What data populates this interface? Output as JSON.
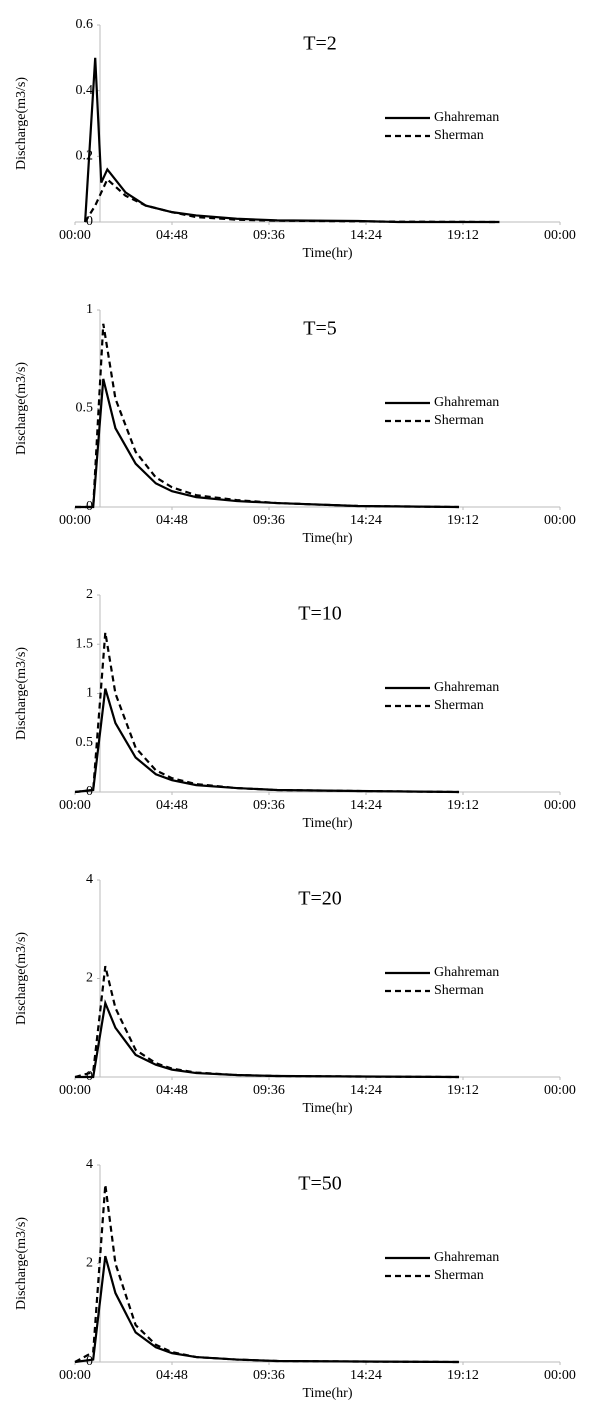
{
  "chart_data": [
    {
      "type": "line",
      "title": "T=2",
      "x_label": "Time(hr)",
      "y_label": "Discharge(m3/s)",
      "x": [
        0.5,
        1.0,
        1.3,
        1.6,
        2.5,
        3.5,
        4.8,
        6,
        8,
        10,
        14,
        16,
        21
      ],
      "series": [
        {
          "name": "Ghahreman",
          "color": "#000000",
          "line_style": "solid",
          "values": [
            0,
            0.5,
            0.12,
            0.16,
            0.09,
            0.05,
            0.03,
            0.02,
            0.01,
            0.005,
            0.003,
            0,
            0
          ]
        },
        {
          "name": "Sherman",
          "color": "#000000",
          "line_style": "dashed",
          "values": [
            0,
            0.05,
            0.09,
            0.13,
            0.08,
            0.05,
            0.03,
            0.015,
            0.007,
            0.004,
            0.002,
            0.001,
            0
          ]
        }
      ],
      "xlim": [
        0,
        24
      ],
      "xticks": [
        {
          "value": 0,
          "label": "00:00"
        },
        {
          "value": 4.8,
          "label": "04:48"
        },
        {
          "value": 9.6,
          "label": "09:36"
        },
        {
          "value": 14.4,
          "label": "14:24"
        },
        {
          "value": 19.2,
          "label": "19:12"
        },
        {
          "value": 24,
          "label": "00:00"
        }
      ],
      "ylim": [
        0,
        0.6
      ],
      "yticks": [
        0,
        0.2,
        0.4,
        0.6
      ],
      "grid": false,
      "legend": "right"
    },
    {
      "type": "line",
      "title": "T=5",
      "x_label": "Time(hr)",
      "y_label": "Discharge(m3/s)",
      "x": [
        0,
        0.9,
        1.4,
        2,
        3,
        4,
        4.8,
        6,
        8,
        10,
        14,
        19
      ],
      "series": [
        {
          "name": "Ghahreman",
          "color": "#000000",
          "line_style": "solid",
          "values": [
            0,
            0,
            0.65,
            0.4,
            0.22,
            0.12,
            0.08,
            0.05,
            0.03,
            0.02,
            0.005,
            0
          ]
        },
        {
          "name": "Sherman",
          "color": "#000000",
          "line_style": "dashed",
          "values": [
            0,
            0,
            0.93,
            0.55,
            0.28,
            0.15,
            0.1,
            0.06,
            0.035,
            0.02,
            0.005,
            0
          ]
        }
      ],
      "xlim": [
        0,
        24
      ],
      "xticks": [
        {
          "value": 0,
          "label": "00:00"
        },
        {
          "value": 4.8,
          "label": "04:48"
        },
        {
          "value": 9.6,
          "label": "09:36"
        },
        {
          "value": 14.4,
          "label": "14:24"
        },
        {
          "value": 19.2,
          "label": "19:12"
        },
        {
          "value": 24,
          "label": "00:00"
        }
      ],
      "ylim": [
        0,
        1
      ],
      "yticks": [
        0,
        0.5,
        1
      ],
      "grid": false,
      "legend": "right"
    },
    {
      "type": "line",
      "title": "T=10",
      "x_label": "Time(hr)",
      "y_label": "Discharge(m3/s)",
      "x": [
        0,
        0.9,
        1.5,
        2,
        3,
        4,
        4.8,
        6,
        8,
        10,
        14,
        19
      ],
      "series": [
        {
          "name": "Ghahreman",
          "color": "#000000",
          "line_style": "solid",
          "values": [
            0,
            0.02,
            1.05,
            0.7,
            0.35,
            0.18,
            0.12,
            0.07,
            0.04,
            0.02,
            0.01,
            0
          ]
        },
        {
          "name": "Sherman",
          "color": "#000000",
          "line_style": "dashed",
          "values": [
            0,
            0.02,
            1.62,
            1.0,
            0.45,
            0.22,
            0.14,
            0.08,
            0.04,
            0.02,
            0.01,
            0
          ]
        }
      ],
      "xlim": [
        0,
        24
      ],
      "xticks": [
        {
          "value": 0,
          "label": "00:00"
        },
        {
          "value": 4.8,
          "label": "04:48"
        },
        {
          "value": 9.6,
          "label": "09:36"
        },
        {
          "value": 14.4,
          "label": "14:24"
        },
        {
          "value": 19.2,
          "label": "19:12"
        },
        {
          "value": 24,
          "label": "00:00"
        }
      ],
      "ylim": [
        0,
        2
      ],
      "yticks": [
        0,
        0.5,
        1,
        1.5,
        2
      ],
      "grid": false,
      "legend": "right"
    },
    {
      "type": "line",
      "title": "T=20",
      "x_label": "Time(hr)",
      "y_label": "Discharge(m3/s)",
      "x": [
        0,
        0.9,
        1.5,
        2,
        3,
        4,
        4.8,
        6,
        8,
        10,
        14,
        19
      ],
      "series": [
        {
          "name": "Ghahreman",
          "color": "#000000",
          "line_style": "solid",
          "values": [
            0,
            0,
            1.5,
            1.0,
            0.45,
            0.25,
            0.15,
            0.08,
            0.04,
            0.02,
            0.01,
            0
          ]
        },
        {
          "name": "Sherman",
          "color": "#000000",
          "line_style": "dashed",
          "values": [
            0,
            0.1,
            2.25,
            1.4,
            0.55,
            0.28,
            0.17,
            0.09,
            0.04,
            0.02,
            0.01,
            0
          ]
        }
      ],
      "xlim": [
        0,
        24
      ],
      "xticks": [
        {
          "value": 0,
          "label": "00:00"
        },
        {
          "value": 4.8,
          "label": "04:48"
        },
        {
          "value": 9.6,
          "label": "09:36"
        },
        {
          "value": 14.4,
          "label": "14:24"
        },
        {
          "value": 19.2,
          "label": "19:12"
        },
        {
          "value": 24,
          "label": "00:00"
        }
      ],
      "ylim": [
        0,
        4
      ],
      "yticks": [
        0,
        2,
        4
      ],
      "grid": false,
      "legend": "right"
    },
    {
      "type": "line",
      "title": "T=50",
      "x_label": "Time(hr)",
      "y_label": "Discharge(m3/s)",
      "x": [
        0,
        0.9,
        1.5,
        2,
        3,
        4,
        4.8,
        6,
        8,
        10,
        14,
        19
      ],
      "series": [
        {
          "name": "Ghahreman",
          "color": "#000000",
          "line_style": "solid",
          "values": [
            0,
            0.05,
            2.15,
            1.4,
            0.6,
            0.3,
            0.18,
            0.1,
            0.05,
            0.02,
            0.01,
            0
          ]
        },
        {
          "name": "Sherman",
          "color": "#000000",
          "line_style": "dashed",
          "values": [
            0,
            0.2,
            3.6,
            2.0,
            0.75,
            0.35,
            0.2,
            0.1,
            0.05,
            0.02,
            0.01,
            0
          ]
        }
      ],
      "xlim": [
        0,
        24
      ],
      "xticks": [
        {
          "value": 0,
          "label": "00:00"
        },
        {
          "value": 4.8,
          "label": "04:48"
        },
        {
          "value": 9.6,
          "label": "09:36"
        },
        {
          "value": 14.4,
          "label": "14:24"
        },
        {
          "value": 19.2,
          "label": "19:12"
        },
        {
          "value": 24,
          "label": "00:00"
        }
      ],
      "ylim": [
        0,
        4
      ],
      "yticks": [
        0,
        2,
        4
      ],
      "grid": false,
      "legend": "right"
    }
  ]
}
